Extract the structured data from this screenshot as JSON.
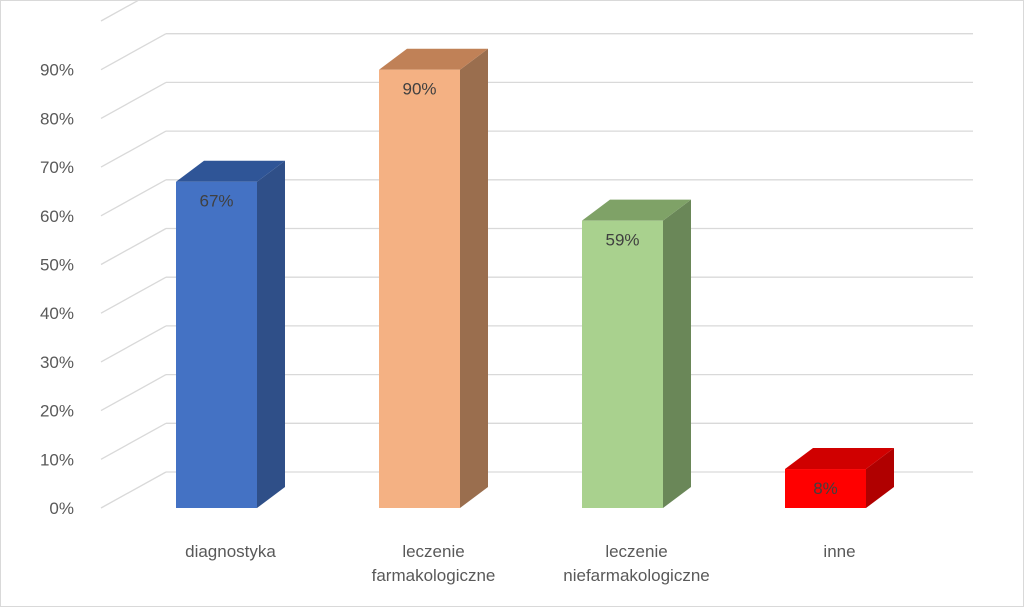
{
  "chart_data": {
    "type": "bar",
    "style": "3d-column",
    "categories": [
      [
        "diagnostyka"
      ],
      [
        "leczenie",
        "farmakologiczne"
      ],
      [
        "leczenie",
        "niefarmakologiczne"
      ],
      [
        "inne"
      ]
    ],
    "values": [
      67,
      90,
      59,
      8
    ],
    "data_labels": [
      "67%",
      "90%",
      "59%",
      "8%"
    ],
    "colors": [
      {
        "front": "#4472c4",
        "side": "#2f4f88",
        "top": "#2f5597"
      },
      {
        "front": "#f4b183",
        "side": "#9a6e4e",
        "top": "#c08157"
      },
      {
        "front": "#a9d18e",
        "side": "#6a8758",
        "top": "#7fa267"
      },
      {
        "front": "#ff0000",
        "side": "#b00000",
        "top": "#d00000"
      }
    ],
    "y_ticks": [
      "0%",
      "10%",
      "20%",
      "30%",
      "40%",
      "50%",
      "60%",
      "70%",
      "80%",
      "90%"
    ],
    "ylim": [
      0,
      100
    ],
    "y_tick_step": 10,
    "grid": true,
    "legend": "none",
    "gridline_color": "#d9d9d9"
  }
}
